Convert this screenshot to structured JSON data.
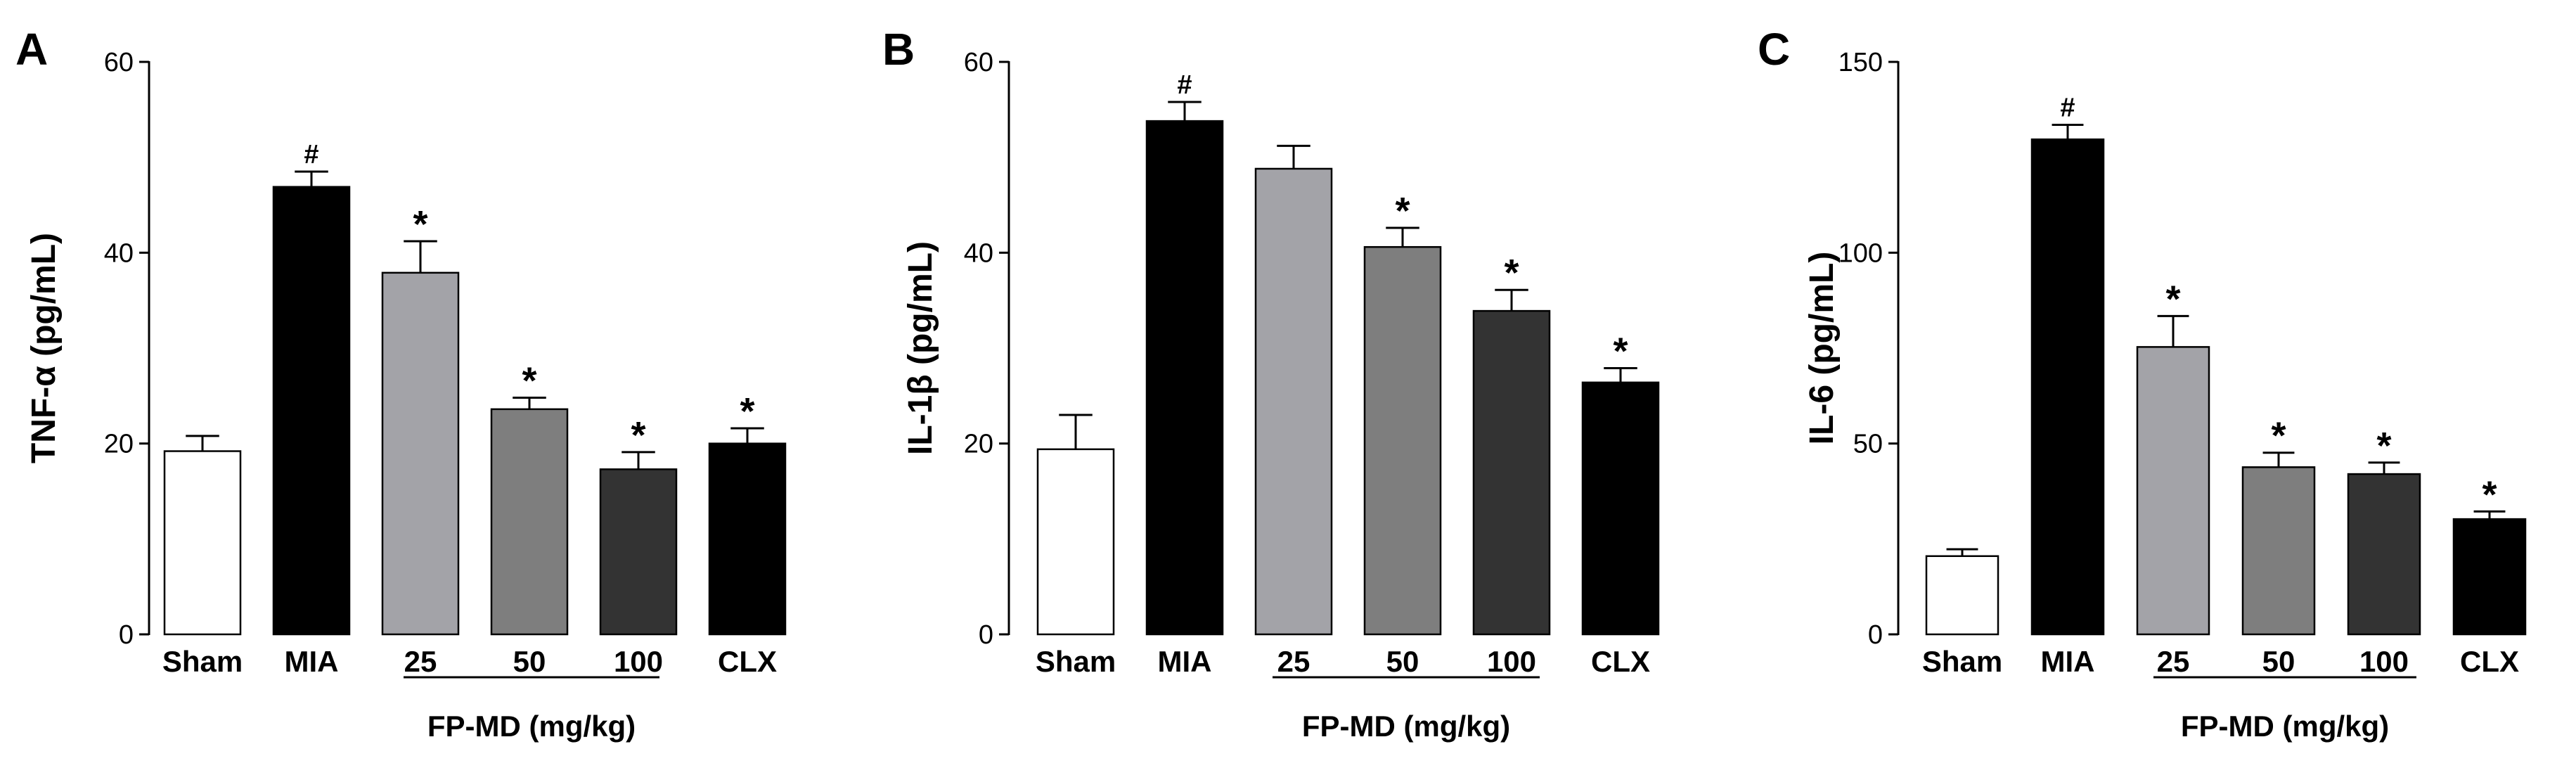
{
  "colors": {
    "Sham": "#ffffff",
    "MIA": "#000000",
    "25": "#a3a3a8",
    "50": "#7e7e7e",
    "100": "#333333",
    "CLX": "#000000"
  },
  "chart_data": [
    {
      "type": "bar",
      "panel": "A",
      "categories": [
        "Sham",
        "MIA",
        "25",
        "50",
        "100",
        "CLX"
      ],
      "values": [
        19.2,
        46.9,
        37.9,
        23.6,
        17.3,
        20.0
      ],
      "errors": [
        1.6,
        1.6,
        3.3,
        1.2,
        1.8,
        1.6
      ],
      "annotations": [
        "",
        "#",
        "*",
        "*",
        "*",
        "*"
      ],
      "ylabel": "TNF-α (pg/mL)",
      "ylim": [
        0,
        60
      ],
      "yticks": [
        "0",
        "20",
        "40",
        "60"
      ],
      "group_label": "FP-MD (mg/kg)",
      "group_members": [
        "25",
        "50",
        "100"
      ]
    },
    {
      "type": "bar",
      "panel": "B",
      "categories": [
        "Sham",
        "MIA",
        "25",
        "50",
        "100",
        "CLX"
      ],
      "values": [
        19.4,
        53.8,
        48.8,
        40.6,
        33.9,
        26.4
      ],
      "errors": [
        3.6,
        2.0,
        2.4,
        2.0,
        2.2,
        1.5
      ],
      "annotations": [
        "",
        "#",
        "",
        "*",
        "*",
        "*"
      ],
      "ylabel": "IL-1β (pg/mL)",
      "ylim": [
        0,
        60
      ],
      "yticks": [
        "0",
        "20",
        "40",
        "60"
      ],
      "group_label": "FP-MD (mg/kg)",
      "group_members": [
        "25",
        "50",
        "100"
      ]
    },
    {
      "type": "bar",
      "panel": "C",
      "categories": [
        "Sham",
        "MIA",
        "25",
        "50",
        "100",
        "CLX"
      ],
      "values": [
        20.5,
        129.7,
        75.3,
        43.8,
        42.0,
        30.2
      ],
      "errors": [
        1.8,
        3.8,
        8.1,
        3.8,
        3.0,
        2.0
      ],
      "annotations": [
        "",
        "#",
        "*",
        "*",
        "*",
        "*"
      ],
      "ylabel": "IL-6 (pg/mL)",
      "ylim": [
        0,
        150
      ],
      "yticks": [
        "0",
        "50",
        "100",
        "150"
      ],
      "group_label": "FP-MD (mg/kg)",
      "group_members": [
        "25",
        "50",
        "100"
      ]
    }
  ]
}
